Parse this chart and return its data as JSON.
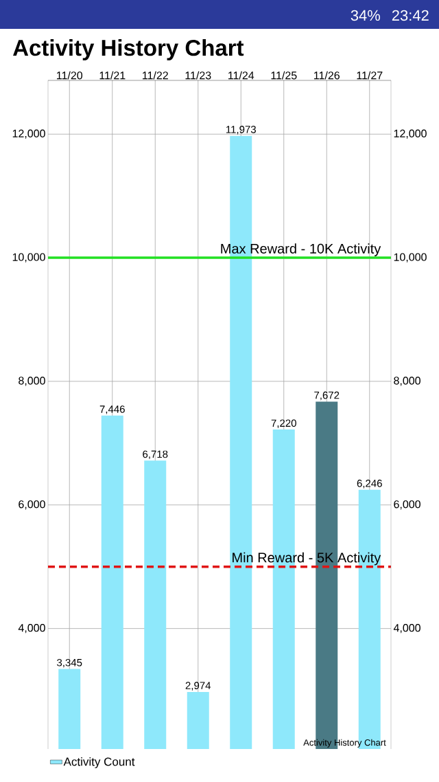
{
  "chart_data": {
    "type": "bar",
    "title": "Activity History Chart",
    "categories": [
      "11/20",
      "11/21",
      "11/22",
      "11/23",
      "11/24",
      "11/25",
      "11/26",
      "11/27"
    ],
    "series": [
      {
        "name": "Activity Count",
        "color": "#8ee8fb",
        "values": [
          3345,
          7446,
          6718,
          2974,
          11973,
          7220,
          7672,
          6246
        ],
        "colors": [
          "#8ee8fb",
          "#8ee8fb",
          "#8ee8fb",
          "#8ee8fb",
          "#8ee8fb",
          "#8ee8fb",
          "#4a7a85",
          "#8ee8fb"
        ],
        "value_labels": [
          "3,345",
          "7,446",
          "6,718",
          "2,974",
          "11,973",
          "7,220",
          "7,672",
          "6,246"
        ]
      }
    ],
    "ylim": [
      2050,
      12870
    ],
    "yticks": [
      {
        "value": 4000,
        "label": "4,000"
      },
      {
        "value": 6000,
        "label": "6,000"
      },
      {
        "value": 8000,
        "label": "8,000"
      },
      {
        "value": 10000,
        "label": "10,000"
      },
      {
        "value": 12000,
        "label": "12,000"
      }
    ],
    "y2lim": [
      2050,
      12870
    ],
    "y2ticks": [
      {
        "value": 4000,
        "label": "4,000"
      },
      {
        "value": 6000,
        "label": "6,000"
      },
      {
        "value": 8000,
        "label": "8,000"
      },
      {
        "value": 10000,
        "label": "10,000"
      },
      {
        "value": 12000,
        "label": "12,000"
      }
    ],
    "ref_lines": [
      {
        "axis": "y",
        "value": 10000,
        "label": "Max Reward - 10K Activity",
        "color": "#22e022",
        "line_style": "solid"
      },
      {
        "axis": "y",
        "value": 5000,
        "label": "Min Reward - 5K Activity",
        "color": "#e01515",
        "line_style": "dashed"
      }
    ],
    "annotations": [
      "Activity History Chart",
      "34%",
      "23:42"
    ],
    "grid": true,
    "legend": "bottom"
  }
}
